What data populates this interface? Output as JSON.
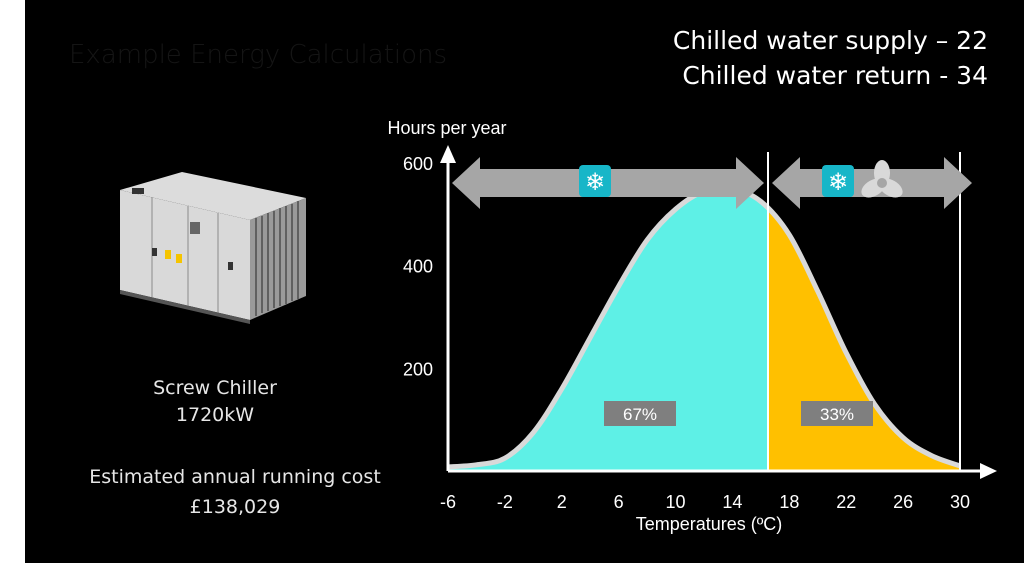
{
  "slide": {
    "title": "Example Energy Calculations",
    "supply_label": "Chilled water supply – 22",
    "return_label": "Chilled water return - 34"
  },
  "product": {
    "name": "Screw Chiller",
    "capacity": "1720kW",
    "cost_label": "Estimated annual running cost",
    "cost_value": "£138,029"
  },
  "chart_data": {
    "type": "area",
    "ylabel": "Hours per year",
    "xlabel": "Temperatures (ºC)",
    "x_ticks": [
      -6,
      -2,
      2,
      6,
      10,
      14,
      18,
      22,
      26,
      30
    ],
    "y_ticks": [
      200,
      400,
      600
    ],
    "xlim": [
      -6,
      30
    ],
    "ylim": [
      0,
      600
    ],
    "split_temperature": 16.5,
    "zone_percentages": [
      "67%",
      "33%"
    ],
    "zone_colors": [
      "#5ef0e6",
      "#ffc000"
    ],
    "zone_icons": [
      "snowflake-icon",
      "snowflake-fan-icon"
    ],
    "curve": {
      "x": [
        -6,
        -4,
        -2,
        0,
        2,
        4,
        6,
        8,
        10,
        12,
        14,
        16,
        18,
        20,
        22,
        24,
        26,
        28,
        30
      ],
      "y": [
        8,
        12,
        25,
        75,
        160,
        260,
        360,
        450,
        510,
        545,
        550,
        525,
        460,
        350,
        230,
        130,
        65,
        30,
        10
      ]
    }
  }
}
